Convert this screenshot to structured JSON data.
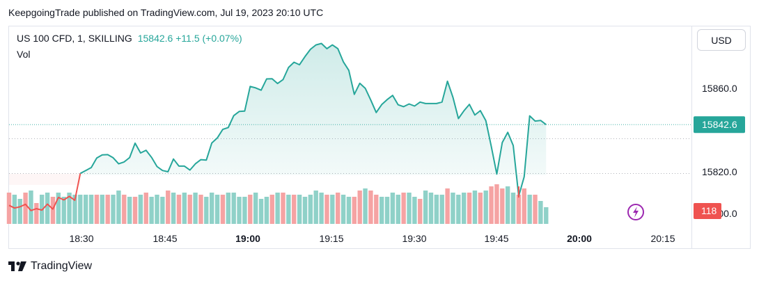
{
  "publish_info": "KeepgoingTrade published on TradingView.com, Jul 19, 2023 20:10 UTC",
  "legend": {
    "symbol": "US 100 CFD, 1, SKILLING",
    "value": "15842.6  +11.5 (+0.07%)",
    "vol_label": "Vol"
  },
  "currency_button": "USD",
  "footer_brand": "TradingView",
  "colors": {
    "up": "#26a69a",
    "down": "#ef5350",
    "vol_up": "#8fd1c8",
    "vol_down": "#f5a3a3",
    "accent_icon": "#9c27b0"
  },
  "chart_data": {
    "type": "line",
    "x_ticks": [
      "18:30",
      "18:45",
      "19:00",
      "19:15",
      "19:30",
      "19:45",
      "20:00",
      "20:15"
    ],
    "y_ticks": [
      "15860.0",
      "15820.0",
      "15800.0"
    ],
    "ylim": [
      15798,
      15893
    ],
    "last_price_label": "15842.6",
    "volume_label": "118",
    "price": [
      15803.9,
      15802.6,
      15803.2,
      15804.4,
      15801.4,
      15802.3,
      15801.6,
      15804.5,
      15802.1,
      15807.7,
      15806.5,
      15808.2,
      15806.3,
      15819.2,
      15820.6,
      15822.0,
      15826.6,
      15828.1,
      15828.2,
      15826.7,
      15823.8,
      15824.7,
      15826.8,
      15833.7,
      15829.0,
      15830.3,
      15826.9,
      15822.5,
      15820.6,
      15820.0,
      15826.1,
      15822.7,
      15822.7,
      15820.8,
      15823.8,
      15825.8,
      15825.6,
      15833.8,
      15836.2,
      15840.3,
      15841.2,
      15846.9,
      15848.9,
      15849.1,
      15860.9,
      15860.2,
      15859.1,
      15864.5,
      15864.6,
      15862.3,
      15864.2,
      15870.0,
      15872.5,
      15871.3,
      15875.2,
      15878.7,
      15880.8,
      15881.5,
      15879.0,
      15880.8,
      15879.0,
      15872.7,
      15868.6,
      15857.1,
      15862.4,
      15860.0,
      15854.4,
      15848.4,
      15852.2,
      15854.6,
      15856.6,
      15852.1,
      15851.2,
      15852.5,
      15851.5,
      15853.4,
      15852.7,
      15852.7,
      15852.7,
      15853.4,
      15863.4,
      15855.7,
      15845.5,
      15849.2,
      15852.3,
      15847.2,
      15849.3,
      15844.5,
      15832.1,
      15818.9,
      15834.0,
      15838.9,
      15832.6,
      15808.3,
      15817.6,
      15846.8,
      15844.3,
      15844.6,
      15842.6
    ],
    "volume": [
      15,
      14,
      12,
      15,
      16,
      10,
      14,
      15,
      13,
      15,
      13,
      15,
      14,
      14,
      14,
      14,
      14,
      14,
      14,
      14,
      16,
      14,
      13,
      13,
      14,
      15,
      13,
      14,
      13,
      16,
      15,
      14,
      15,
      14,
      15,
      14,
      13,
      15,
      14,
      14,
      15,
      15,
      13,
      13,
      14,
      15,
      12,
      13,
      14,
      15,
      15,
      14,
      14,
      14,
      13,
      14,
      16,
      15,
      14,
      14,
      15,
      14,
      13,
      13,
      16,
      17,
      16,
      14,
      13,
      13,
      15,
      14,
      15,
      15,
      13,
      12,
      16,
      15,
      14,
      14,
      17,
      15,
      14,
      15,
      15,
      16,
      15,
      16,
      18,
      19,
      17,
      18,
      15,
      14,
      17,
      14,
      14,
      11,
      8
    ],
    "volume_dir": [
      "d",
      "u",
      "u",
      "d",
      "u",
      "d",
      "u",
      "u",
      "d",
      "u",
      "u",
      "u",
      "u",
      "u",
      "u",
      "u",
      "d",
      "u",
      "d",
      "u",
      "u",
      "d",
      "u",
      "d",
      "u",
      "d",
      "u",
      "u",
      "u",
      "d",
      "u",
      "d",
      "u",
      "d",
      "u",
      "d",
      "u",
      "u",
      "u",
      "d",
      "u",
      "u",
      "u",
      "u",
      "d",
      "u",
      "u",
      "u",
      "d",
      "u",
      "d",
      "u",
      "d",
      "u",
      "u",
      "u",
      "u",
      "u",
      "d",
      "u",
      "d",
      "u",
      "u",
      "d",
      "d",
      "u",
      "d",
      "d",
      "u",
      "u",
      "u",
      "u",
      "d",
      "u",
      "u",
      "d",
      "u",
      "u",
      "u",
      "u",
      "d",
      "u",
      "u",
      "u",
      "d",
      "u",
      "d",
      "u",
      "d",
      "d",
      "d",
      "u",
      "u",
      "d",
      "d",
      "u",
      "d",
      "u",
      "u"
    ]
  }
}
